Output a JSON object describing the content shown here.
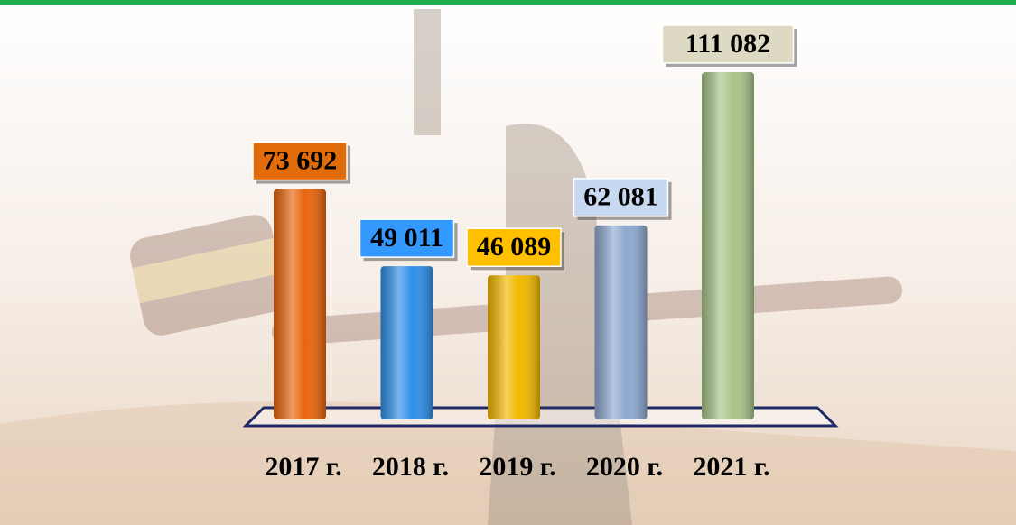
{
  "chart_data": {
    "type": "bar",
    "categories": [
      "2017 г.",
      "2018 г.",
      "2019 г.",
      "2020 г.",
      "2021 г."
    ],
    "values": [
      73692,
      49011,
      46089,
      62081,
      111082
    ],
    "value_labels": [
      "73 692",
      "49 011",
      "46 089",
      "62 081",
      "111 082"
    ],
    "colors": [
      "#e8650e",
      "#2f8fe8",
      "#f2b800",
      "#8ea9d0",
      "#a9c48a"
    ],
    "label_colors": [
      "#e36c0a",
      "#3399ff",
      "#ffc000",
      "#c6d9f1",
      "#ddd9c3"
    ]
  }
}
